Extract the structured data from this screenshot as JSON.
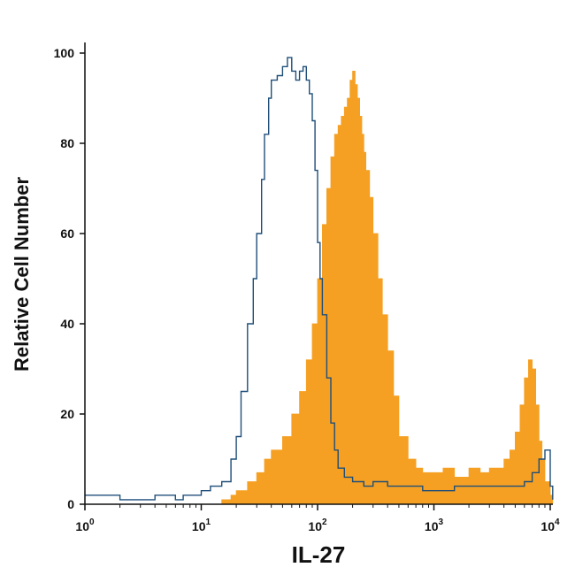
{
  "chart_data": {
    "type": "area",
    "title": "",
    "xlabel": "IL-27",
    "ylabel": "Relative Cell Number",
    "x_scale": "log",
    "xlim": [
      1,
      10000
    ],
    "ylim": [
      0,
      100
    ],
    "x_ticks": [
      {
        "value": 1,
        "base": "10",
        "exp": "0"
      },
      {
        "value": 10,
        "base": "10",
        "exp": "1"
      },
      {
        "value": 100,
        "base": "10",
        "exp": "2"
      },
      {
        "value": 1000,
        "base": "10",
        "exp": "3"
      },
      {
        "value": 10000,
        "base": "10",
        "exp": "4"
      }
    ],
    "y_ticks": [
      "0",
      "20",
      "40",
      "60",
      "80",
      "100"
    ],
    "grid": false,
    "legend": "none",
    "series": [
      {
        "style": "filled",
        "color": "#f5a023",
        "x": [
          10,
          13,
          15,
          18,
          20,
          25,
          30,
          35,
          40,
          50,
          60,
          70,
          80,
          90,
          100,
          110,
          120,
          130,
          140,
          150,
          160,
          170,
          180,
          190,
          200,
          210,
          220,
          230,
          240,
          250,
          260,
          280,
          300,
          330,
          360,
          400,
          450,
          500,
          600,
          700,
          800,
          1000,
          1200,
          1500,
          2000,
          2500,
          3000,
          3500,
          4000,
          4500,
          5000,
          5500,
          6000,
          6500,
          7000,
          7500,
          8000,
          8500,
          9000,
          10000,
          10500
        ],
        "y": [
          0,
          0,
          1,
          2,
          3,
          5,
          7,
          10,
          12,
          15,
          20,
          25,
          32,
          40,
          50,
          62,
          70,
          77,
          82,
          84,
          86,
          88,
          90,
          94,
          96,
          93,
          90,
          86,
          82,
          78,
          74,
          68,
          60,
          50,
          42,
          34,
          24,
          15,
          10,
          8,
          7,
          7,
          8,
          6,
          8,
          7,
          8,
          8,
          10,
          12,
          16,
          22,
          28,
          32,
          30,
          22,
          14,
          10,
          5,
          2,
          0
        ]
      },
      {
        "style": "outline",
        "color": "#1f4e79",
        "x": [
          1,
          2,
          3,
          4,
          5,
          6,
          7,
          8,
          10,
          12,
          15,
          18,
          20,
          22,
          25,
          28,
          30,
          33,
          35,
          38,
          40,
          45,
          50,
          55,
          58,
          60,
          65,
          70,
          75,
          80,
          85,
          90,
          95,
          100,
          105,
          110,
          120,
          130,
          140,
          150,
          170,
          200,
          250,
          300,
          400,
          500,
          600,
          800,
          1000,
          1500,
          2000,
          3000,
          4000,
          5000,
          6000,
          7000,
          8000,
          9000,
          10000,
          10500
        ],
        "y": [
          2,
          1,
          1,
          2,
          2,
          1,
          2,
          2,
          3,
          4,
          5,
          10,
          15,
          25,
          40,
          50,
          60,
          72,
          82,
          90,
          94,
          95,
          97,
          99,
          99,
          96,
          94,
          96,
          97,
          94,
          91,
          85,
          74,
          58,
          50,
          42,
          28,
          18,
          12,
          8,
          6,
          5,
          4,
          5,
          4,
          4,
          4,
          3,
          3,
          4,
          4,
          4,
          4,
          4,
          5,
          7,
          10,
          12,
          4,
          1
        ]
      }
    ]
  }
}
